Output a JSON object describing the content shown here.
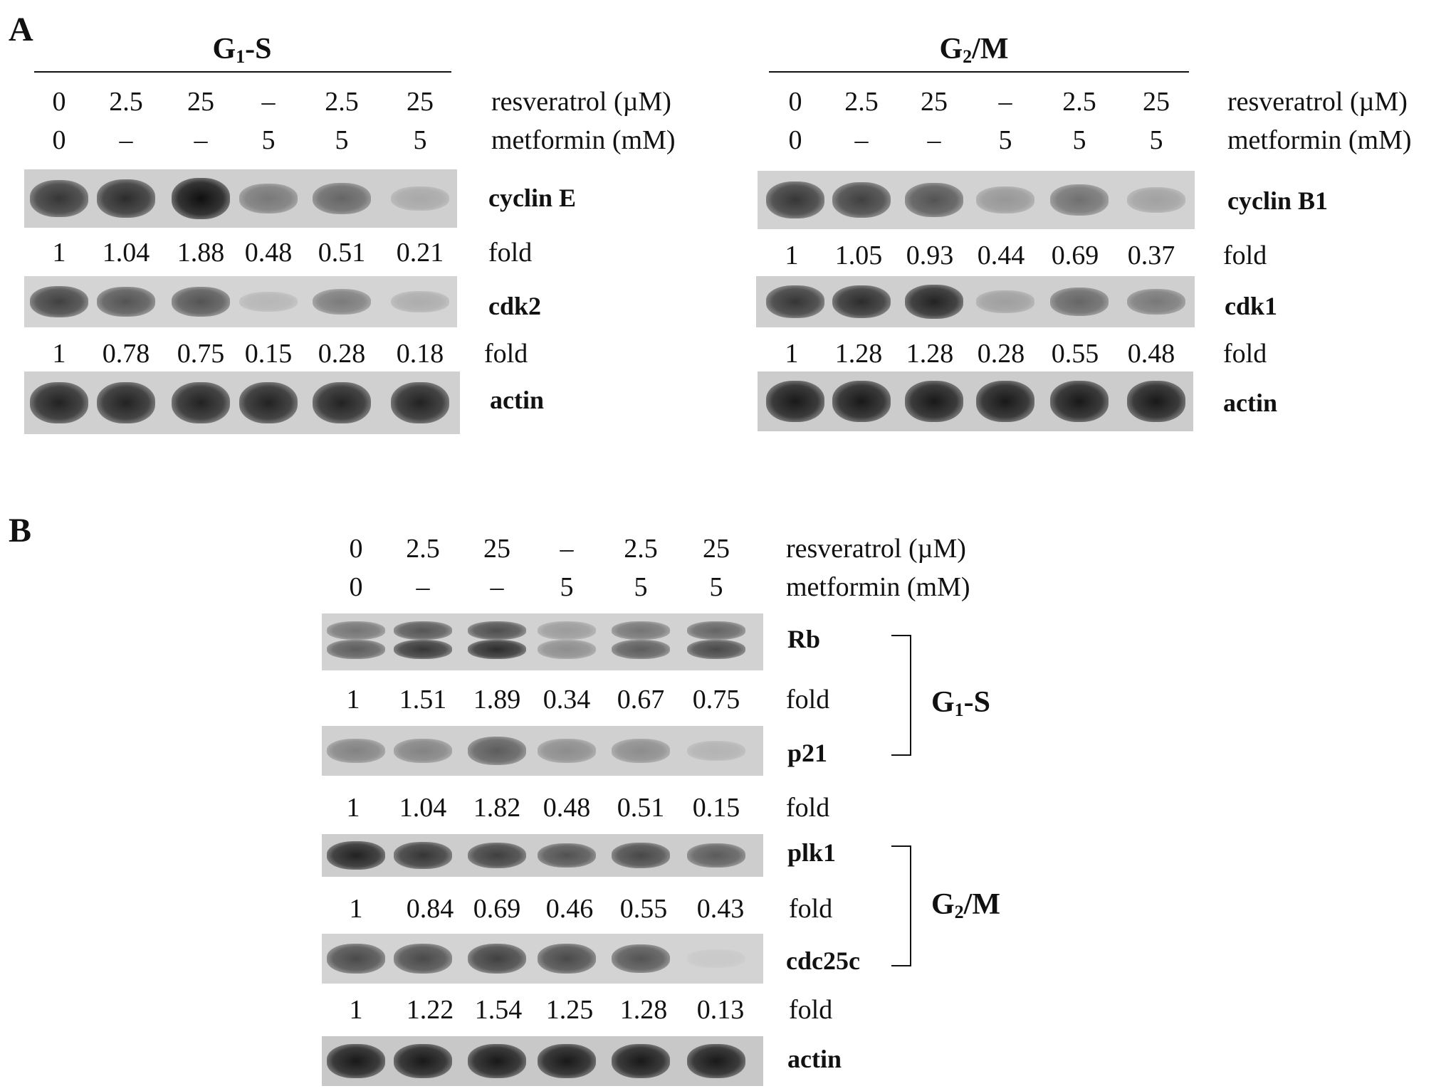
{
  "panels": {
    "a": {
      "label": "A",
      "g1s": {
        "header_main": "G",
        "header_sub": "1",
        "header_rest": "-S",
        "resveratrol": [
          "0",
          "2.5",
          "25",
          "–",
          "2.5",
          "25"
        ],
        "metformin": [
          "0",
          "–",
          "–",
          "5",
          "5",
          "5"
        ],
        "resveratrol_label": "resveratrol (µM)",
        "metformin_label": "metformin (mM)",
        "blots": [
          {
            "protein": "cyclin E",
            "fold": [
              "1",
              "1.04",
              "1.88",
              "0.48",
              "0.51",
              "0.21"
            ],
            "fold_label": "fold",
            "intensity": [
              0.8,
              0.85,
              1.0,
              0.45,
              0.55,
              0.2
            ]
          },
          {
            "protein": "cdk2",
            "fold": [
              "1",
              "0.78",
              "0.75",
              "0.15",
              "0.28",
              "0.18"
            ],
            "fold_label": "fold",
            "intensity": [
              0.75,
              0.65,
              0.65,
              0.15,
              0.45,
              0.2
            ]
          },
          {
            "protein": "actin",
            "intensity": [
              0.9,
              0.9,
              0.9,
              0.9,
              0.9,
              0.9
            ]
          }
        ]
      },
      "g2m": {
        "header_main": "G",
        "header_sub": "2",
        "header_rest": "/M",
        "resveratrol": [
          "0",
          "2.5",
          "25",
          "–",
          "2.5",
          "25"
        ],
        "metformin": [
          "0",
          "–",
          "–",
          "5",
          "5",
          "5"
        ],
        "resveratrol_label": "resveratrol (µM)",
        "metformin_label": "metformin (mM)",
        "blots": [
          {
            "protein": "cyclin B1",
            "fold": [
              "1",
              "1.05",
              "0.93",
              "0.44",
              "0.69",
              "0.37"
            ],
            "fold_label": "fold",
            "intensity": [
              0.8,
              0.75,
              0.65,
              0.3,
              0.5,
              0.25
            ]
          },
          {
            "protein": "cdk1",
            "fold": [
              "1",
              "1.28",
              "1.28",
              "0.28",
              "0.55",
              "0.48"
            ],
            "fold_label": "fold",
            "intensity": [
              0.8,
              0.85,
              0.9,
              0.25,
              0.55,
              0.45
            ]
          },
          {
            "protein": "actin",
            "intensity": [
              0.95,
              0.95,
              0.95,
              0.95,
              0.95,
              0.95
            ]
          }
        ]
      }
    },
    "b": {
      "label": "B",
      "resveratrol": [
        "0",
        "2.5",
        "25",
        "–",
        "2.5",
        "25"
      ],
      "metformin": [
        "0",
        "–",
        "–",
        "5",
        "5",
        "5"
      ],
      "resveratrol_label": "resveratrol (µM)",
      "metformin_label": "metformin (mM)",
      "blots": [
        {
          "protein": "Rb",
          "fold": [
            "1",
            "1.51",
            "1.89",
            "0.34",
            "0.67",
            "0.75"
          ],
          "fold_label": "fold",
          "intensity": [
            0.6,
            0.8,
            0.85,
            0.35,
            0.6,
            0.7
          ]
        },
        {
          "protein": "p21",
          "fold": [
            "1",
            "1.04",
            "1.82",
            "0.48",
            "0.51",
            "0.15"
          ],
          "fold_label": "fold",
          "intensity": [
            0.4,
            0.4,
            0.6,
            0.35,
            0.35,
            0.15
          ]
        },
        {
          "protein": "plk1",
          "fold": [
            "1",
            "0.84",
            "0.69",
            "0.46",
            "0.55",
            "0.43"
          ],
          "fold_label": "fold",
          "intensity": [
            0.9,
            0.8,
            0.75,
            0.65,
            0.7,
            0.6
          ]
        },
        {
          "protein": "cdc25c",
          "fold": [
            "1",
            "1.22",
            "1.54",
            "1.25",
            "1.28",
            "0.13"
          ],
          "fold_label": "fold",
          "intensity": [
            0.7,
            0.7,
            0.75,
            0.7,
            0.65,
            0.05
          ]
        },
        {
          "protein": "actin",
          "intensity": [
            0.95,
            0.95,
            0.95,
            0.95,
            0.95,
            0.95
          ]
        }
      ],
      "groups": [
        {
          "main": "G",
          "sub": "1",
          "rest": "-S"
        },
        {
          "main": "G",
          "sub": "2",
          "rest": "/M"
        }
      ]
    }
  }
}
